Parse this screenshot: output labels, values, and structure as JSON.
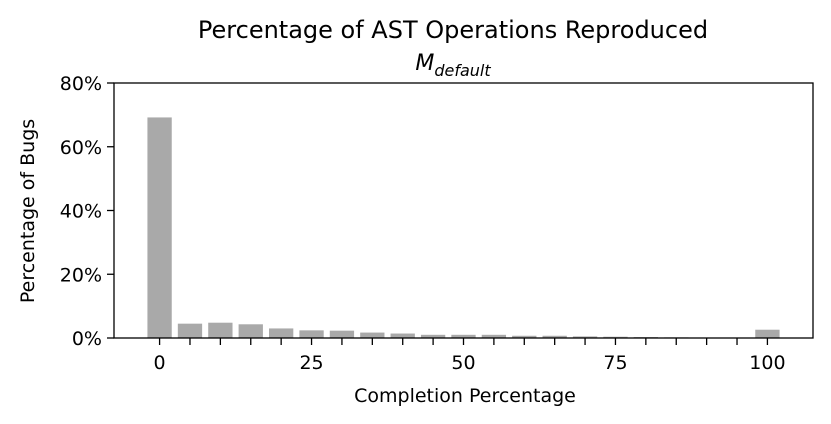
{
  "chart_data": {
    "type": "bar",
    "title": "Percentage of AST Operations Reproduced",
    "subtitle_main": "M",
    "subtitle_sub": "default",
    "xlabel": "Completion Percentage",
    "ylabel": "Percentage of Bugs",
    "x_ticks": [
      0,
      25,
      50,
      75,
      100
    ],
    "x_tick_labels": [
      "0",
      "25",
      "50",
      "75",
      "100"
    ],
    "x_minor_ticks": [
      5,
      10,
      15,
      20,
      30,
      35,
      40,
      45,
      55,
      60,
      65,
      70,
      80,
      85,
      90,
      95
    ],
    "xlim": [
      -7.5,
      107.5
    ],
    "y_ticks": [
      0,
      20,
      40,
      60,
      80
    ],
    "y_tick_labels": [
      "0%",
      "20%",
      "40%",
      "60%",
      "80%"
    ],
    "ylim": [
      0,
      80
    ],
    "bar_width": 4,
    "bar_color": "#a9a9a9",
    "x": [
      0,
      5,
      10,
      15,
      20,
      25,
      30,
      35,
      40,
      45,
      50,
      55,
      60,
      65,
      70,
      75,
      80,
      85,
      90,
      95,
      100
    ],
    "values": [
      69.2,
      4.5,
      4.8,
      4.3,
      3.0,
      2.4,
      2.3,
      1.7,
      1.4,
      1.0,
      1.0,
      1.0,
      0.7,
      0.7,
      0.5,
      0.4,
      0.3,
      0.2,
      0.1,
      0.1,
      2.6
    ],
    "grid": false,
    "legend": "none"
  }
}
